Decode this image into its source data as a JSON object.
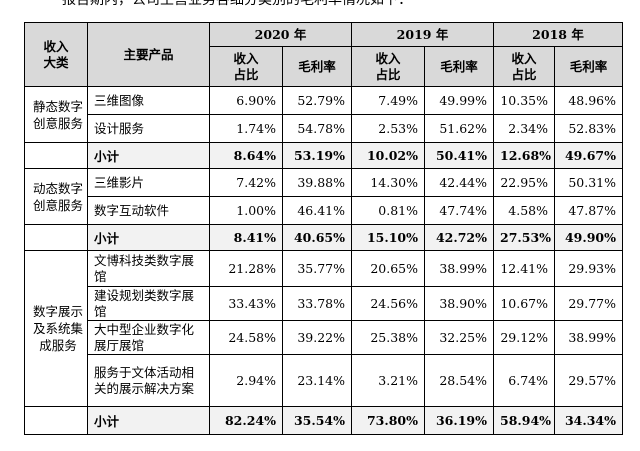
{
  "intro_text": "报告期内，公司主营业务各细分类别的毛利率情况如下：",
  "header": {
    "category": "收入大类",
    "product": "主要产品",
    "years": [
      "2020 年",
      "2019 年",
      "2018 年"
    ],
    "share": "收入占比",
    "margin": "毛利率"
  },
  "groups": [
    {
      "category": "静态数字创意服务",
      "rows": [
        {
          "product": "三维图像",
          "v": [
            "6.90%",
            "52.79%",
            "7.49%",
            "49.99%",
            "10.35%",
            "48.96%"
          ]
        },
        {
          "product": "设计服务",
          "v": [
            "1.74%",
            "54.78%",
            "2.53%",
            "51.62%",
            "2.34%",
            "52.83%"
          ]
        }
      ],
      "subtotal": {
        "label": "小计",
        "v": [
          "8.64%",
          "53.19%",
          "10.02%",
          "50.41%",
          "12.68%",
          "49.67%"
        ]
      }
    },
    {
      "category": "动态数字创意服务",
      "rows": [
        {
          "product": "三维影片",
          "v": [
            "7.42%",
            "39.88%",
            "14.30%",
            "42.44%",
            "22.95%",
            "50.31%"
          ]
        },
        {
          "product": "数字互动软件",
          "v": [
            "1.00%",
            "46.41%",
            "0.81%",
            "47.74%",
            "4.58%",
            "47.87%"
          ]
        }
      ],
      "subtotal": {
        "label": "小计",
        "v": [
          "8.41%",
          "40.65%",
          "15.10%",
          "42.72%",
          "27.53%",
          "49.90%"
        ]
      }
    },
    {
      "category": "数字展示及系统集成服务",
      "rows": [
        {
          "product": "文博科技类数字展馆",
          "v": [
            "21.28%",
            "35.77%",
            "20.65%",
            "38.99%",
            "12.41%",
            "29.93%"
          ]
        },
        {
          "product": "建设规划类数字展馆",
          "v": [
            "33.43%",
            "33.78%",
            "24.56%",
            "38.90%",
            "10.67%",
            "29.77%"
          ]
        },
        {
          "product": "大中型企业数字化展厅展馆",
          "v": [
            "24.58%",
            "39.22%",
            "25.38%",
            "32.25%",
            "29.12%",
            "38.99%"
          ]
        },
        {
          "product": "服务于文体活动相关的展示解决方案",
          "v": [
            "2.94%",
            "23.14%",
            "3.21%",
            "28.54%",
            "6.74%",
            "29.57%"
          ]
        }
      ],
      "subtotal": {
        "label": "小计",
        "v": [
          "82.24%",
          "35.54%",
          "73.80%",
          "36.19%",
          "58.94%",
          "34.34%"
        ]
      }
    }
  ]
}
